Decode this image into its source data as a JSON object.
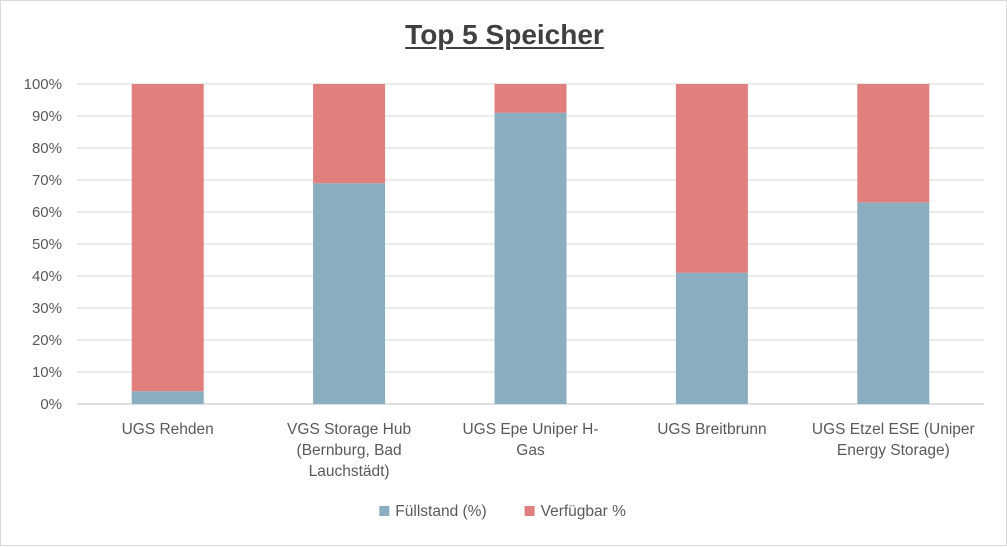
{
  "chart_data": {
    "type": "bar",
    "stacked": true,
    "title": "Top 5 Speicher",
    "categories": [
      [
        "UGS Rehden"
      ],
      [
        "VGS Storage Hub",
        "(Bernburg, Bad",
        "Lauchstädt)"
      ],
      [
        "UGS Epe Uniper H-",
        "Gas"
      ],
      [
        "UGS Breitbrunn"
      ],
      [
        "UGS Etzel ESE (Uniper",
        "Energy Storage)"
      ]
    ],
    "series": [
      {
        "name": "Füllstand (%)",
        "color": "#8aaebf",
        "values": [
          4,
          69,
          91,
          41,
          63
        ]
      },
      {
        "name": "Verfügbar %",
        "color": "#e07f7e",
        "values": [
          96,
          31,
          9,
          59,
          37
        ]
      }
    ],
    "ylim": [
      0,
      100
    ],
    "yticks": [
      "0%",
      "10%",
      "20%",
      "30%",
      "40%",
      "50%",
      "60%",
      "70%",
      "80%",
      "90%",
      "100%"
    ],
    "grid": true,
    "legend": "bottom"
  }
}
